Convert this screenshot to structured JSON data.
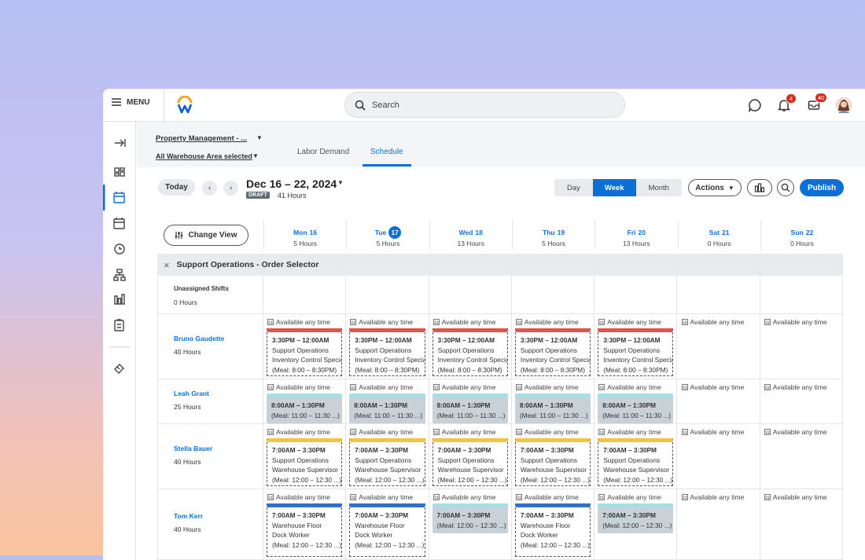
{
  "header": {
    "menu": "MENU",
    "search": "Search",
    "notifications": "4",
    "inbox": "40"
  },
  "filters": {
    "property": "Property Management - ...",
    "area": "All Warehouse Area selected"
  },
  "tabs": [
    "Labor Demand",
    "Schedule"
  ],
  "toolbar": {
    "today": "Today",
    "date_range": "Dec 16 – 22, 2024",
    "status": "DRAFT",
    "total_hours": "41 Hours",
    "views": [
      "Day",
      "Week",
      "Month"
    ],
    "actions": "Actions",
    "publish": "Publish",
    "change_view": "Change View"
  },
  "days": [
    {
      "dow": "Mon",
      "date": "16",
      "hours": "5 Hours"
    },
    {
      "dow": "Tue",
      "date": "17",
      "hours": "5 Hours"
    },
    {
      "dow": "Wed",
      "date": "18",
      "hours": "13 Hours"
    },
    {
      "dow": "Thu",
      "date": "19",
      "hours": "5 Hours"
    },
    {
      "dow": "Fri",
      "date": "20",
      "hours": "13 Hours"
    },
    {
      "dow": "Sat",
      "date": "21",
      "hours": "0 Hours"
    },
    {
      "dow": "Sun",
      "date": "22",
      "hours": "0 Hours"
    }
  ],
  "group": "Support Operations - Order Selector",
  "unassigned": {
    "label": "Unassigned Shifts",
    "hours": "0 Hours"
  },
  "employees": [
    {
      "name": "Bruno Gaudette",
      "hours": "40 Hours",
      "cells": [
        {
          "availability": "Available any time",
          "shift": {
            "time": "3:30PM – 12:00AM",
            "lines": [
              "Support Operations",
              "Inventory Control Special"
            ],
            "meal": "(Meal: 8:00 – 8:30PM)",
            "color": "#e5534b"
          }
        },
        {
          "availability": "Available any time",
          "shift": {
            "time": "3:30PM – 12:00AM",
            "lines": [
              "Support Operations",
              "Inventory Control Special"
            ],
            "meal": "(Meal: 8:00 – 8:30PM)",
            "color": "#e5534b"
          }
        },
        {
          "availability": "Available any time",
          "shift": {
            "time": "3:30PM – 12:00AM",
            "lines": [
              "Support Operations",
              "Inventory Control Special"
            ],
            "meal": "(Meal: 8:00 – 8:30PM)",
            "color": "#e5534b"
          }
        },
        {
          "availability": "Available any time",
          "shift": {
            "time": "3:30PM – 12:00AM",
            "lines": [
              "Support Operations",
              "Inventory Control Special"
            ],
            "meal": "(Meal: 8:00 – 8:30PM)",
            "color": "#e5534b"
          }
        },
        {
          "availability": "Available any time",
          "shift": {
            "time": "3:30PM – 12:00AM",
            "lines": [
              "Support Operations",
              "Inventory Control Special"
            ],
            "meal": "(Meal: 8:00 – 8:30PM)",
            "color": "#e5534b"
          }
        },
        {
          "availability": "Available any time"
        },
        {
          "availability": "Available any time"
        }
      ]
    },
    {
      "name": "Leah Grant",
      "hours": "25 Hours",
      "cells": [
        {
          "availability": "Available any time",
          "shift": {
            "time": "8:00AM – 1:30PM",
            "meal": "(Meal: 11:00 – 11:30 ...)",
            "color": "#a9dde6"
          }
        },
        {
          "availability": "Available any time",
          "shift": {
            "time": "8:00AM – 1:30PM",
            "meal": "(Meal: 11:00 – 11:30 ...)",
            "color": "#a9dde6"
          }
        },
        {
          "availability": "Available any time",
          "shift": {
            "time": "8:00AM – 1:30PM",
            "meal": "(Meal: 11:00 – 11:30 ...)",
            "color": "#a9dde6"
          }
        },
        {
          "availability": "Available any time",
          "shift": {
            "time": "8:00AM – 1:30PM",
            "meal": "(Meal: 11:00 – 11:30 ...)",
            "color": "#a9dde6"
          }
        },
        {
          "availability": "Available any time",
          "shift": {
            "time": "8:00AM – 1:30PM",
            "meal": "(Meal: 11:00 – 11:30 ...)",
            "color": "#a9dde6"
          }
        },
        {
          "availability": "Available any time"
        },
        {
          "availability": "Available any time"
        }
      ]
    },
    {
      "name": "Stella Bauer",
      "hours": "40 Hours",
      "cells": [
        {
          "availability": "Available any time",
          "shift": {
            "time": "7:00AM – 3:30PM",
            "lines": [
              "Support Operations",
              "Warehouse Supervisor"
            ],
            "meal": "(Meal: 12:00 – 12:30 ...)",
            "color": "#f2c53d"
          }
        },
        {
          "availability": "Available any time",
          "shift": {
            "time": "7:00AM – 3:30PM",
            "lines": [
              "Support Operations",
              "Warehouse Supervisor"
            ],
            "meal": "(Meal: 12:00 – 12:30 ...)",
            "color": "#f2c53d"
          }
        },
        {
          "availability": "Available any time",
          "shift": {
            "time": "7:00AM – 3:30PM",
            "lines": [
              "Support Operations",
              "Warehouse Supervisor"
            ],
            "meal": "(Meal: 12:00 – 12:30 ...)",
            "color": "#f2c53d"
          }
        },
        {
          "availability": "Available any time",
          "shift": {
            "time": "7:00AM – 3:30PM",
            "lines": [
              "Support Operations",
              "Warehouse Supervisor"
            ],
            "meal": "(Meal: 12:00 – 12:30 ...)",
            "color": "#f2c53d"
          }
        },
        {
          "availability": "Available any time",
          "shift": {
            "time": "7:00AM – 3:30PM",
            "lines": [
              "Support Operations",
              "Warehouse Supervisor"
            ],
            "meal": "(Meal: 12:00 – 12:30 ...)",
            "color": "#f2c53d"
          }
        },
        {
          "availability": "Available any time"
        },
        {
          "availability": "Available any time"
        }
      ]
    },
    {
      "name": "Tom Kerr",
      "hours": "40 Hours",
      "cells": [
        {
          "availability": "Available any time",
          "shift": {
            "time": "7:00AM – 3:30PM",
            "lines": [
              "Warehouse Floor",
              "Dock Worker"
            ],
            "meal": "(Meal: 12:00 – 12:30 ...)",
            "color": "#2f6fd0"
          }
        },
        {
          "availability": "Available any time",
          "shift": {
            "time": "7:00AM – 3:30PM",
            "lines": [
              "Warehouse Floor",
              "Dock Worker"
            ],
            "meal": "(Meal: 12:00 – 12:30 ...)",
            "color": "#2f6fd0"
          }
        },
        {
          "availability": "Available any time",
          "shift": {
            "time": "7:00AM – 3:30PM",
            "meal": "(Meal: 12:00 – 12:30 ...)",
            "color": "#a9dde6"
          }
        },
        {
          "availability": "Available any time",
          "shift": {
            "time": "7:00AM – 3:30PM",
            "lines": [
              "Warehouse Floor",
              "Dock Worker"
            ],
            "meal": "(Meal: 12:00 – 12:30 ...)",
            "color": "#2f6fd0"
          }
        },
        {
          "availability": "Available any time",
          "shift": {
            "time": "7:00AM – 3:30PM",
            "meal": "(Meal: 12:00 – 12:30 ...)",
            "color": "#a9dde6"
          }
        },
        {
          "availability": "Available any time"
        },
        {
          "availability": "Available any time"
        }
      ]
    }
  ]
}
